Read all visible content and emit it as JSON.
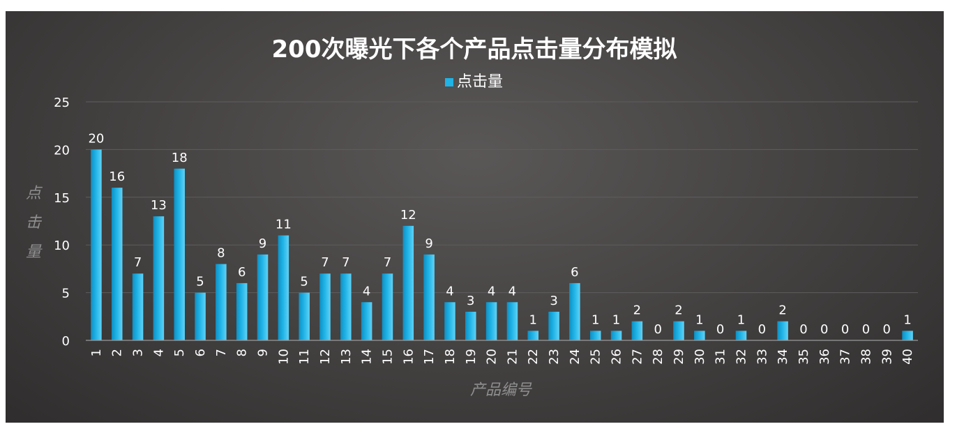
{
  "chart_data": {
    "type": "bar",
    "title": "200次曝光下各个产品点击量分布模拟",
    "xlabel": "产品编号",
    "ylabel": "点击量",
    "ylim": [
      0,
      25
    ],
    "yticks": [
      0,
      5,
      10,
      15,
      20,
      25
    ],
    "grid": true,
    "legend": {
      "position": "top-center"
    },
    "categories": [
      "1",
      "2",
      "3",
      "4",
      "5",
      "6",
      "7",
      "8",
      "9",
      "10",
      "11",
      "12",
      "13",
      "14",
      "15",
      "16",
      "17",
      "18",
      "19",
      "20",
      "21",
      "22",
      "23",
      "24",
      "25",
      "26",
      "27",
      "28",
      "29",
      "30",
      "31",
      "32",
      "33",
      "34",
      "35",
      "36",
      "37",
      "38",
      "39",
      "40"
    ],
    "series": [
      {
        "name": "点击量",
        "color": "#1fb3e6",
        "values": [
          20,
          16,
          7,
          13,
          18,
          5,
          8,
          6,
          9,
          11,
          5,
          7,
          7,
          4,
          7,
          12,
          9,
          4,
          3,
          4,
          4,
          1,
          3,
          6,
          1,
          1,
          2,
          0,
          2,
          1,
          0,
          1,
          0,
          2,
          0,
          0,
          0,
          0,
          0,
          1
        ]
      }
    ]
  }
}
